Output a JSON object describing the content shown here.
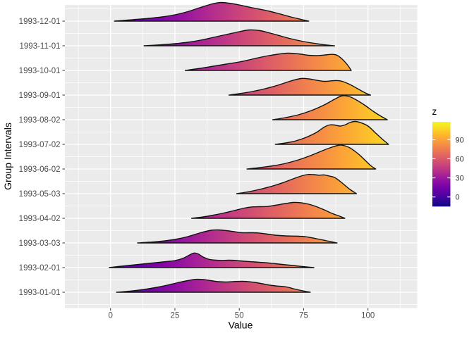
{
  "chart_data": {
    "type": "ridgeline",
    "title": "",
    "xlabel": "Value",
    "ylabel": "Group Intervals",
    "x_ticks": [
      "0",
      "25",
      "50",
      "75",
      "100"
    ],
    "x_tick_values": [
      0,
      25,
      50,
      75,
      100
    ],
    "x_minor_values": [
      -12.5,
      12.5,
      37.5,
      62.5,
      87.5,
      112.5
    ],
    "x_range_shown": [
      -18,
      119
    ],
    "legend": {
      "title": "z",
      "tick_labels": [
        "90",
        "60",
        "30",
        "0"
      ],
      "tick_values": [
        90,
        60,
        30,
        0
      ],
      "z_range": [
        -15,
        118
      ],
      "colormap": "plasma",
      "position": "right"
    },
    "colors": {
      "panel_bg": "#EBEBEB",
      "grid": "#FFFFFF",
      "tick_text": "#4D4D4D",
      "axis_title": "#000000",
      "ridge_outline": "#121212",
      "plasma_stops": [
        "#0d0887",
        "#41049d",
        "#6a00a8",
        "#8f0da4",
        "#b12a90",
        "#cc4778",
        "#e16462",
        "#f2844b",
        "#fca636",
        "#fcce25",
        "#f0f921"
      ]
    },
    "note": "density profiles as [value, relative_density_height_px] pairs, groups listed top-to-bottom",
    "groups": [
      {
        "label": "1993-12-01",
        "density": [
          [
            1.5,
            0
          ],
          [
            5,
            1
          ],
          [
            10,
            2.5
          ],
          [
            15,
            4
          ],
          [
            20,
            6
          ],
          [
            25,
            9
          ],
          [
            30,
            13.5
          ],
          [
            35,
            19.5
          ],
          [
            40,
            25
          ],
          [
            43,
            26.5
          ],
          [
            46,
            25.5
          ],
          [
            50,
            23
          ],
          [
            55,
            19
          ],
          [
            60,
            15.5
          ],
          [
            65,
            11
          ],
          [
            70,
            6
          ],
          [
            74,
            2.5
          ],
          [
            77,
            0
          ]
        ]
      },
      {
        "label": "1993-11-01",
        "density": [
          [
            13,
            0
          ],
          [
            20,
            1.5
          ],
          [
            25,
            3
          ],
          [
            30,
            5
          ],
          [
            35,
            8
          ],
          [
            40,
            12
          ],
          [
            45,
            16
          ],
          [
            50,
            20
          ],
          [
            54,
            22.5
          ],
          [
            58,
            21.5
          ],
          [
            62,
            18
          ],
          [
            66,
            14
          ],
          [
            70,
            10
          ],
          [
            75,
            6
          ],
          [
            80,
            3
          ],
          [
            84,
            1
          ],
          [
            87,
            0
          ]
        ]
      },
      {
        "label": "1993-10-01",
        "density": [
          [
            29,
            0
          ],
          [
            35,
            3
          ],
          [
            40,
            6
          ],
          [
            45,
            9
          ],
          [
            50,
            12
          ],
          [
            55,
            16
          ],
          [
            60,
            20
          ],
          [
            65,
            23
          ],
          [
            69,
            24.5
          ],
          [
            73,
            23.5
          ],
          [
            77,
            21.5
          ],
          [
            80,
            21
          ],
          [
            83,
            21.8
          ],
          [
            86,
            22.8
          ],
          [
            88,
            21.5
          ],
          [
            90,
            16
          ],
          [
            92,
            8
          ],
          [
            93.5,
            0
          ]
        ]
      },
      {
        "label": "1993-09-01",
        "density": [
          [
            46,
            0
          ],
          [
            50,
            2
          ],
          [
            55,
            5
          ],
          [
            60,
            9
          ],
          [
            65,
            14
          ],
          [
            70,
            20
          ],
          [
            74,
            23.5
          ],
          [
            77,
            23
          ],
          [
            80,
            21
          ],
          [
            83,
            19.5
          ],
          [
            86,
            20.3
          ],
          [
            88,
            20.6
          ],
          [
            90,
            19.5
          ],
          [
            93,
            15
          ],
          [
            96,
            9
          ],
          [
            99,
            3
          ],
          [
            101,
            0
          ]
        ]
      },
      {
        "label": "1993-08-02",
        "density": [
          [
            63,
            0
          ],
          [
            68,
            3
          ],
          [
            73,
            7
          ],
          [
            78,
            13
          ],
          [
            83,
            21
          ],
          [
            87,
            29
          ],
          [
            90,
            34
          ],
          [
            93,
            32.5
          ],
          [
            96,
            27
          ],
          [
            99,
            20
          ],
          [
            102,
            12
          ],
          [
            105,
            5
          ],
          [
            107.5,
            0
          ]
        ]
      },
      {
        "label": "1993-07-02",
        "density": [
          [
            64,
            0
          ],
          [
            68,
            2
          ],
          [
            72,
            5
          ],
          [
            76,
            10
          ],
          [
            80,
            17
          ],
          [
            83,
            24.5
          ],
          [
            85,
            27.5
          ],
          [
            87,
            27.5
          ],
          [
            89,
            26
          ],
          [
            91,
            27.5
          ],
          [
            93,
            31
          ],
          [
            95,
            32.5
          ],
          [
            97,
            31
          ],
          [
            100,
            26
          ],
          [
            103,
            16
          ],
          [
            106,
            6
          ],
          [
            108,
            0
          ]
        ]
      },
      {
        "label": "1993-06-02",
        "density": [
          [
            53,
            0
          ],
          [
            58,
            2
          ],
          [
            63,
            4.5
          ],
          [
            68,
            8
          ],
          [
            73,
            13
          ],
          [
            78,
            19.5
          ],
          [
            83,
            27
          ],
          [
            86,
            31
          ],
          [
            89,
            34
          ],
          [
            91,
            33
          ],
          [
            93,
            30
          ],
          [
            95,
            25
          ],
          [
            97,
            19
          ],
          [
            99,
            12
          ],
          [
            101,
            5
          ],
          [
            103,
            0
          ]
        ]
      },
      {
        "label": "1993-05-03",
        "density": [
          [
            49,
            0
          ],
          [
            54,
            3
          ],
          [
            59,
            7
          ],
          [
            64,
            12
          ],
          [
            68,
            17
          ],
          [
            72,
            22.5
          ],
          [
            75,
            26
          ],
          [
            77,
            27.3
          ],
          [
            79,
            27
          ],
          [
            81,
            26.2
          ],
          [
            83,
            26.6
          ],
          [
            85,
            25
          ],
          [
            87,
            23
          ],
          [
            89,
            18
          ],
          [
            91,
            12
          ],
          [
            93,
            6
          ],
          [
            95.5,
            0
          ]
        ]
      },
      {
        "label": "1993-04-02",
        "density": [
          [
            31.5,
            0
          ],
          [
            36,
            2
          ],
          [
            40,
            4.5
          ],
          [
            44,
            7.5
          ],
          [
            48,
            11
          ],
          [
            52,
            14.5
          ],
          [
            55,
            16.2
          ],
          [
            58,
            16.5
          ],
          [
            61,
            16.8
          ],
          [
            64,
            18.5
          ],
          [
            68,
            21
          ],
          [
            71,
            22.5
          ],
          [
            74,
            22
          ],
          [
            77,
            20
          ],
          [
            80,
            16.5
          ],
          [
            83,
            12
          ],
          [
            86,
            7
          ],
          [
            89,
            3
          ],
          [
            91,
            0
          ]
        ]
      },
      {
        "label": "1993-03-03",
        "density": [
          [
            10.5,
            0
          ],
          [
            15,
            1
          ],
          [
            20,
            2.5
          ],
          [
            25,
            5
          ],
          [
            30,
            9
          ],
          [
            35,
            14.5
          ],
          [
            39,
            18
          ],
          [
            42,
            18.5
          ],
          [
            45,
            17.5
          ],
          [
            48,
            16
          ],
          [
            51,
            14.5
          ],
          [
            54,
            14.5
          ],
          [
            57,
            14.3
          ],
          [
            60,
            13
          ],
          [
            64,
            11
          ],
          [
            68,
            10
          ],
          [
            72,
            9.7
          ],
          [
            76,
            8.7
          ],
          [
            80,
            6
          ],
          [
            84,
            3
          ],
          [
            88,
            0
          ]
        ]
      },
      {
        "label": "1993-02-01",
        "density": [
          [
            -0.5,
            0
          ],
          [
            3,
            1.5
          ],
          [
            7,
            3
          ],
          [
            11,
            4.5
          ],
          [
            15,
            6
          ],
          [
            19,
            7.5
          ],
          [
            22,
            8.7
          ],
          [
            25,
            10
          ],
          [
            28,
            13
          ],
          [
            31,
            18.5
          ],
          [
            32.5,
            20.7
          ],
          [
            34,
            19.5
          ],
          [
            36,
            15
          ],
          [
            38,
            12
          ],
          [
            40,
            10.8
          ],
          [
            43,
            10.2
          ],
          [
            46,
            10.5
          ],
          [
            49,
            10
          ],
          [
            52,
            9
          ],
          [
            56,
            8
          ],
          [
            60,
            7
          ],
          [
            64,
            5.5
          ],
          [
            68,
            4
          ],
          [
            72,
            2.5
          ],
          [
            76,
            1
          ],
          [
            79,
            0
          ]
        ]
      },
      {
        "label": "1993-01-01",
        "density": [
          [
            2.3,
            0
          ],
          [
            6,
            1
          ],
          [
            10,
            2.5
          ],
          [
            14,
            4.5
          ],
          [
            18,
            7
          ],
          [
            22,
            10
          ],
          [
            26,
            13.5
          ],
          [
            30,
            16.5
          ],
          [
            33,
            18.3
          ],
          [
            36,
            18
          ],
          [
            39,
            16.5
          ],
          [
            42,
            15
          ],
          [
            45,
            14.6
          ],
          [
            48,
            15.2
          ],
          [
            51,
            15.6
          ],
          [
            53,
            15.2
          ],
          [
            56,
            14
          ],
          [
            59,
            12
          ],
          [
            62,
            10
          ],
          [
            65,
            8.7
          ],
          [
            67,
            8.2
          ],
          [
            69,
            7
          ],
          [
            71,
            5
          ],
          [
            74,
            2.5
          ],
          [
            77.6,
            0
          ]
        ]
      }
    ]
  }
}
